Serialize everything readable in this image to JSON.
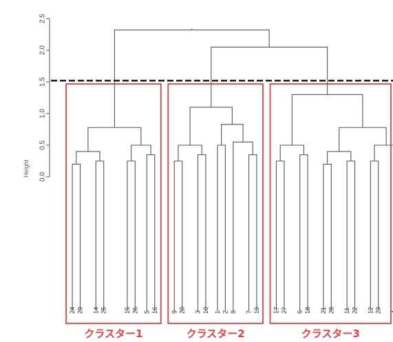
{
  "chart_data": {
    "type": "dendrogram",
    "ylabel": "Height",
    "ylim": [
      0,
      2.5
    ],
    "yticks": [
      "0.0",
      "0.5",
      "1.0",
      "1.5",
      "2.0",
      "2.5"
    ],
    "cut_height": 1.52,
    "leaves": [
      "24",
      "29",
      "14",
      "25",
      "15",
      "26",
      "5",
      "16",
      "9",
      "20",
      "3",
      "10",
      "1",
      "2",
      "8",
      "7",
      "19",
      "17",
      "27",
      "6",
      "18",
      "21",
      "28",
      "11",
      "22",
      "12",
      "23",
      "4",
      "13"
    ],
    "leaf_x": [
      1.5,
      2.5,
      4.5,
      5.5,
      8.5,
      9.5,
      11,
      12,
      14.5,
      15.5,
      17.5,
      18.5,
      20,
      21,
      22,
      24,
      25,
      27.5,
      28.5,
      30.5,
      31.5,
      33.5,
      34.5,
      36.5,
      37.5,
      39.5,
      40.5,
      42.5,
      43.5
    ],
    "merges": [
      {
        "id": "a1",
        "left": "24",
        "right": "29",
        "height": 0.2
      },
      {
        "id": "a2",
        "left": "14",
        "right": "25",
        "height": 0.25
      },
      {
        "id": "a3",
        "left": "a1",
        "right": "a2",
        "height": 0.4
      },
      {
        "id": "a4",
        "left": "15",
        "right": "26",
        "height": 0.25
      },
      {
        "id": "a5",
        "left": "5",
        "right": "16",
        "height": 0.35
      },
      {
        "id": "a6",
        "left": "a4",
        "right": "a5",
        "height": 0.5
      },
      {
        "id": "a7",
        "left": "a3",
        "right": "a6",
        "height": 0.78
      },
      {
        "id": "b1",
        "left": "9",
        "right": "20",
        "height": 0.25
      },
      {
        "id": "b2",
        "left": "3",
        "right": "10",
        "height": 0.35
      },
      {
        "id": "b3",
        "left": "b1",
        "right": "b2",
        "height": 0.5
      },
      {
        "id": "b4",
        "left": "1",
        "right": "2",
        "height": 0.5
      },
      {
        "id": "b5",
        "left": "7",
        "right": "19",
        "height": 0.35
      },
      {
        "id": "b6",
        "left": "8",
        "right": "b5",
        "height": 0.55
      },
      {
        "id": "b7",
        "left": "b4",
        "right": "b6",
        "height": 0.83
      },
      {
        "id": "b8",
        "left": "b3",
        "right": "b7",
        "height": 1.1
      },
      {
        "id": "c1",
        "left": "17",
        "right": "27",
        "height": 0.25
      },
      {
        "id": "c2",
        "left": "6",
        "right": "18",
        "height": 0.35
      },
      {
        "id": "c3",
        "left": "c1",
        "right": "c2",
        "height": 0.5
      },
      {
        "id": "c4",
        "left": "21",
        "right": "28",
        "height": 0.2
      },
      {
        "id": "c5",
        "left": "11",
        "right": "22",
        "height": 0.25
      },
      {
        "id": "c6",
        "left": "c4",
        "right": "c5",
        "height": 0.4
      },
      {
        "id": "c7",
        "left": "12",
        "right": "23",
        "height": 0.25
      },
      {
        "id": "c8",
        "left": "4",
        "right": "13",
        "height": 0.35
      },
      {
        "id": "c9",
        "left": "c7",
        "right": "c8",
        "height": 0.5
      },
      {
        "id": "c10",
        "left": "c6",
        "right": "c9",
        "height": 0.78
      },
      {
        "id": "c11",
        "left": "c3",
        "right": "c10",
        "height": 1.3
      },
      {
        "id": "d1",
        "left": "b8",
        "right": "c11",
        "height": 2.05
      },
      {
        "id": "root",
        "left": "a7",
        "right": "d1",
        "height": 2.32
      }
    ],
    "clusters": [
      {
        "label": "クラスター1",
        "first_leaf": 0,
        "last_leaf": 7
      },
      {
        "label": "クラスター2",
        "first_leaf": 8,
        "last_leaf": 16
      },
      {
        "label": "クラスター3",
        "first_leaf": 17,
        "last_leaf": 28
      }
    ],
    "colors": {
      "tree": "#555555",
      "axis": "#555555",
      "cut_line": "#222222",
      "cluster_box": "#f03c3c",
      "cluster_label": "#f03c3c"
    }
  }
}
